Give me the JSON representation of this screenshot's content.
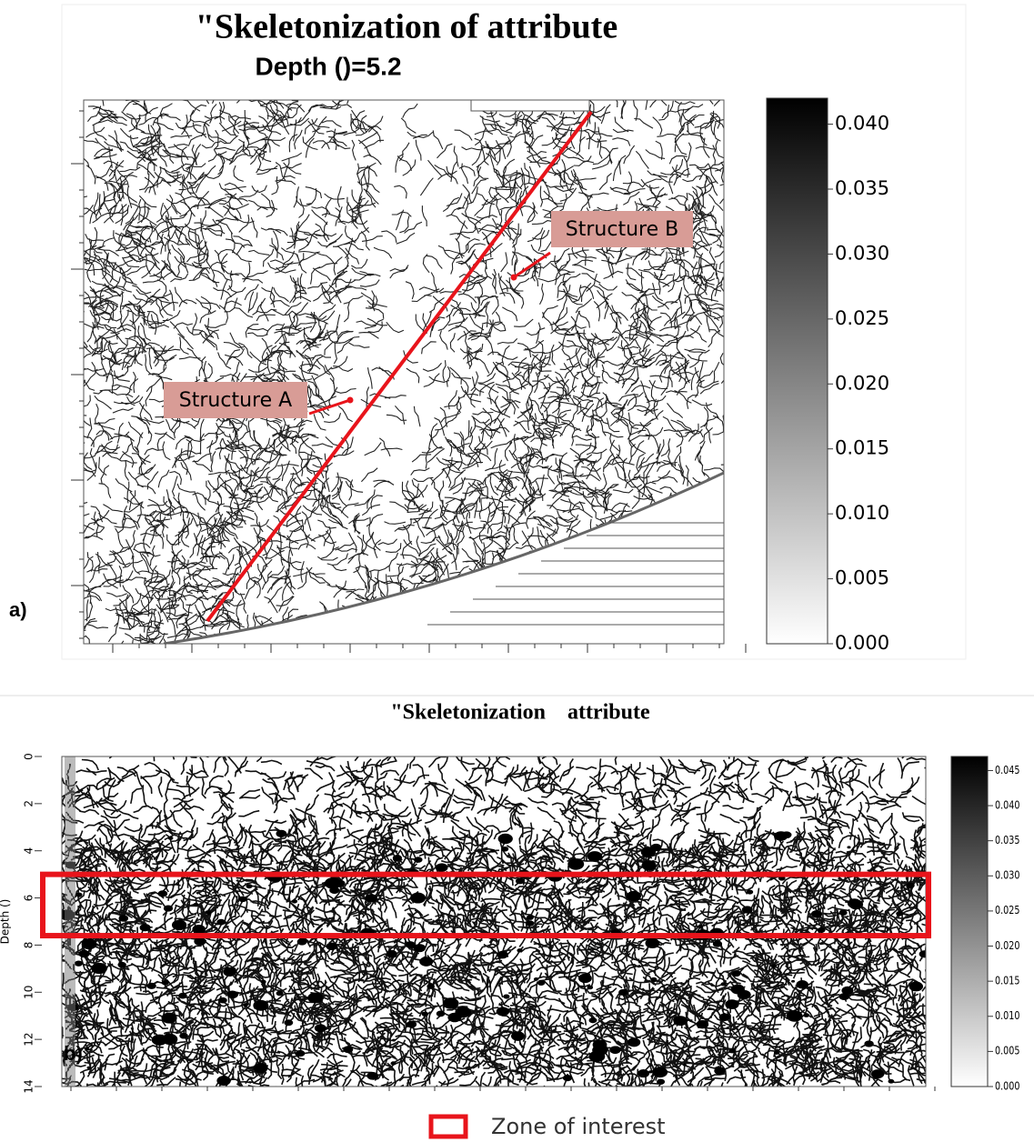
{
  "chart_data": [
    {
      "type": "image",
      "panel_label": "a)",
      "title": "\"Skeletonization of attribute",
      "subtitle": "Depth ()=5.2",
      "annotations": [
        "Structure A",
        "Structure B"
      ],
      "clim": [
        0,
        0.042
      ],
      "cticks": [
        {
          "value": 0,
          "label": "0.000"
        },
        {
          "value": 0.005,
          "label": "0.005"
        },
        {
          "value": 0.01,
          "label": "0.010"
        },
        {
          "value": 0.015,
          "label": "0.015"
        },
        {
          "value": 0.02,
          "label": "0.020"
        },
        {
          "value": 0.025,
          "label": "0.025"
        },
        {
          "value": 0.03,
          "label": "0.030"
        },
        {
          "value": 0.035,
          "label": "0.035"
        },
        {
          "value": 0.04,
          "label": "0.040"
        }
      ]
    },
    {
      "type": "image",
      "panel_label": "b)",
      "title": "\"Skeletonization    attribute",
      "ylabel": "Depth ()",
      "ylim": [
        0,
        14
      ],
      "yticks": [
        0,
        2,
        4,
        6,
        8,
        10,
        12,
        14
      ],
      "clim": [
        0,
        0.047
      ],
      "cticks": [
        {
          "value": 0,
          "label": "0.000"
        },
        {
          "value": 0.005,
          "label": "0.005"
        },
        {
          "value": 0.01,
          "label": "0.010"
        },
        {
          "value": 0.015,
          "label": "0.015"
        },
        {
          "value": 0.02,
          "label": "0.020"
        },
        {
          "value": 0.025,
          "label": "0.025"
        },
        {
          "value": 0.03,
          "label": "0.030"
        },
        {
          "value": 0.035,
          "label": "0.035"
        },
        {
          "value": 0.04,
          "label": "0.040"
        },
        {
          "value": 0.045,
          "label": "0.045"
        }
      ],
      "zone": {
        "label": "Zone of interest",
        "ylim": [
          5,
          7.6
        ],
        "color": "#e8141b"
      }
    }
  ]
}
